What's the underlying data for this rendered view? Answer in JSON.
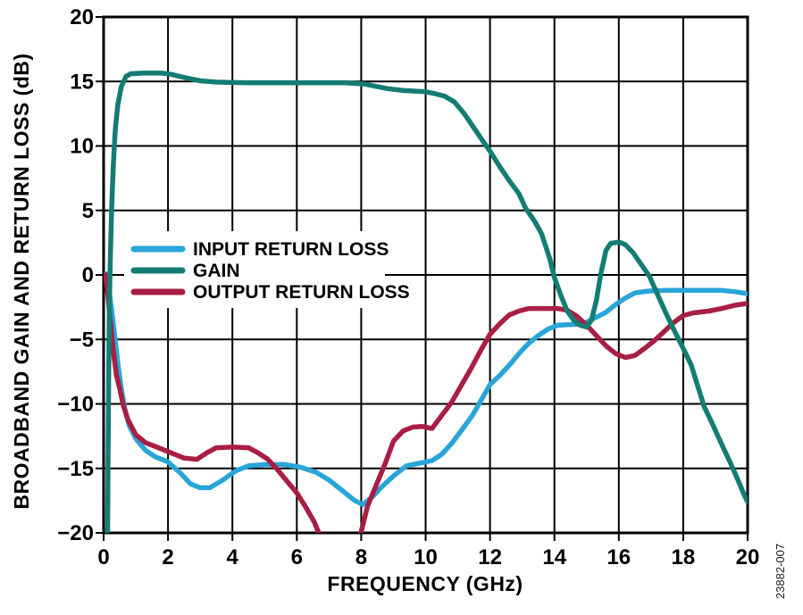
{
  "figure": {
    "background": "#ffffff",
    "axis_color": "#000000",
    "watermark": "23882-007"
  },
  "legend": {
    "items": [
      {
        "label": "INPUT RETURN LOSS",
        "color": "#29A5D8"
      },
      {
        "label": "GAIN",
        "color": "#147C73"
      },
      {
        "label": "OUTPUT RETURN LOSS",
        "color": "#A81E44"
      }
    ]
  },
  "chart_data": {
    "type": "line",
    "title": "",
    "xlabel": "FREQUENCY (GHz)",
    "ylabel": "BROADBAND GAIN AND RETURN LOSS (dB)",
    "xlim": [
      0,
      20
    ],
    "ylim": [
      -20,
      20
    ],
    "grid": true,
    "legend_position": "inside-left-middle",
    "x_tick_values": [
      0,
      2,
      4,
      6,
      8,
      10,
      12,
      14,
      16,
      18,
      20
    ],
    "x_tick_labels": [
      "0",
      "2",
      "4",
      "6",
      "8",
      "10",
      "12",
      "14",
      "16",
      "18",
      "20"
    ],
    "y_tick_values": [
      20,
      15,
      10,
      5,
      0,
      -5,
      -10,
      -15,
      -20
    ],
    "y_tick_labels": [
      "20",
      "15",
      "10",
      "5",
      "0",
      "−5",
      "−10",
      "−15",
      "−20"
    ],
    "series": [
      {
        "name": "INPUT RETURN LOSS",
        "color": "#29A5D8",
        "points": [
          [
            0.07,
            0.1
          ],
          [
            0.15,
            -0.9
          ],
          [
            0.25,
            -2.7
          ],
          [
            0.35,
            -4.8
          ],
          [
            0.45,
            -7.0
          ],
          [
            0.55,
            -8.8
          ],
          [
            0.65,
            -10.3
          ],
          [
            0.8,
            -11.7
          ],
          [
            1.0,
            -12.7
          ],
          [
            1.3,
            -13.6
          ],
          [
            1.6,
            -14.1
          ],
          [
            2.0,
            -14.5
          ],
          [
            2.4,
            -15.4
          ],
          [
            2.7,
            -16.2
          ],
          [
            3.0,
            -16.5
          ],
          [
            3.3,
            -16.5
          ],
          [
            3.7,
            -15.9
          ],
          [
            4.1,
            -15.2
          ],
          [
            4.5,
            -14.8
          ],
          [
            5.0,
            -14.7
          ],
          [
            5.6,
            -14.7
          ],
          [
            6.1,
            -14.9
          ],
          [
            6.6,
            -15.3
          ],
          [
            7.0,
            -15.9
          ],
          [
            7.4,
            -16.7
          ],
          [
            7.8,
            -17.5
          ],
          [
            8.05,
            -17.8
          ],
          [
            8.35,
            -17.2
          ],
          [
            8.65,
            -16.4
          ],
          [
            9.0,
            -15.6
          ],
          [
            9.4,
            -14.8
          ],
          [
            9.8,
            -14.6
          ],
          [
            10.2,
            -14.4
          ],
          [
            10.5,
            -13.9
          ],
          [
            10.8,
            -13.1
          ],
          [
            11.1,
            -12.1
          ],
          [
            11.45,
            -10.9
          ],
          [
            11.75,
            -9.6
          ],
          [
            12.0,
            -8.5
          ],
          [
            12.3,
            -7.8
          ],
          [
            12.6,
            -7.0
          ],
          [
            12.9,
            -6.1
          ],
          [
            13.2,
            -5.3
          ],
          [
            13.5,
            -4.7
          ],
          [
            13.8,
            -4.2
          ],
          [
            14.1,
            -3.9
          ],
          [
            14.5,
            -3.85
          ],
          [
            14.9,
            -3.8
          ],
          [
            15.2,
            -3.4
          ],
          [
            15.6,
            -2.9
          ],
          [
            15.9,
            -2.3
          ],
          [
            16.2,
            -1.8
          ],
          [
            16.5,
            -1.4
          ],
          [
            16.9,
            -1.25
          ],
          [
            17.5,
            -1.2
          ],
          [
            18.5,
            -1.2
          ],
          [
            19.2,
            -1.2
          ],
          [
            19.6,
            -1.3
          ],
          [
            20.0,
            -1.45
          ]
        ]
      },
      {
        "name": "GAIN",
        "color": "#147C73",
        "points": [
          [
            0.12,
            -22
          ],
          [
            0.14,
            -14
          ],
          [
            0.16,
            -7
          ],
          [
            0.18,
            -2
          ],
          [
            0.21,
            1.5
          ],
          [
            0.25,
            5.2
          ],
          [
            0.3,
            8.4
          ],
          [
            0.36,
            11.2
          ],
          [
            0.44,
            13.2
          ],
          [
            0.55,
            14.6
          ],
          [
            0.7,
            15.4
          ],
          [
            0.85,
            15.6
          ],
          [
            1.2,
            15.65
          ],
          [
            1.8,
            15.65
          ],
          [
            2.1,
            15.55
          ],
          [
            2.35,
            15.4
          ],
          [
            2.6,
            15.25
          ],
          [
            3.0,
            15.05
          ],
          [
            3.5,
            14.95
          ],
          [
            4.5,
            14.9
          ],
          [
            6.0,
            14.9
          ],
          [
            7.5,
            14.9
          ],
          [
            8.1,
            14.8
          ],
          [
            8.4,
            14.65
          ],
          [
            8.8,
            14.45
          ],
          [
            9.3,
            14.3
          ],
          [
            10.0,
            14.2
          ],
          [
            10.3,
            14.05
          ],
          [
            10.6,
            13.85
          ],
          [
            10.9,
            13.4
          ],
          [
            11.2,
            12.5
          ],
          [
            11.5,
            11.4
          ],
          [
            11.8,
            10.3
          ],
          [
            12.0,
            9.6
          ],
          [
            12.3,
            8.4
          ],
          [
            12.6,
            7.3
          ],
          [
            12.9,
            6.3
          ],
          [
            13.1,
            5.2
          ],
          [
            13.4,
            4.1
          ],
          [
            13.6,
            3.2
          ],
          [
            13.85,
            1.3
          ],
          [
            14.0,
            -0.2
          ],
          [
            14.2,
            -1.6
          ],
          [
            14.4,
            -2.8
          ],
          [
            14.6,
            -3.5
          ],
          [
            14.8,
            -3.9
          ],
          [
            15.0,
            -4.05
          ],
          [
            15.15,
            -3.5
          ],
          [
            15.3,
            -2.0
          ],
          [
            15.45,
            0.2
          ],
          [
            15.6,
            1.9
          ],
          [
            15.75,
            2.45
          ],
          [
            16.0,
            2.55
          ],
          [
            16.2,
            2.35
          ],
          [
            16.45,
            1.7
          ],
          [
            16.7,
            0.8
          ],
          [
            16.95,
            -0.1
          ],
          [
            17.2,
            -1.5
          ],
          [
            17.45,
            -2.9
          ],
          [
            17.7,
            -4.2
          ],
          [
            18.0,
            -5.7
          ],
          [
            18.25,
            -7.0
          ],
          [
            18.45,
            -8.6
          ],
          [
            18.65,
            -10.2
          ],
          [
            18.9,
            -11.5
          ],
          [
            19.15,
            -12.9
          ],
          [
            19.45,
            -14.5
          ],
          [
            19.7,
            -15.9
          ],
          [
            19.9,
            -17.1
          ],
          [
            20.0,
            -17.6
          ]
        ]
      },
      {
        "name": "OUTPUT RETURN LOSS",
        "color": "#A81E44",
        "points": [
          [
            0.05,
            0.0
          ],
          [
            0.12,
            -1.2
          ],
          [
            0.2,
            -3.4
          ],
          [
            0.3,
            -5.9
          ],
          [
            0.4,
            -7.8
          ],
          [
            0.5,
            -8.8
          ],
          [
            0.6,
            -10.0
          ],
          [
            0.75,
            -11.2
          ],
          [
            1.0,
            -12.4
          ],
          [
            1.3,
            -13.0
          ],
          [
            1.7,
            -13.4
          ],
          [
            2.1,
            -13.8
          ],
          [
            2.5,
            -14.2
          ],
          [
            2.9,
            -14.3
          ],
          [
            3.2,
            -13.8
          ],
          [
            3.5,
            -13.4
          ],
          [
            4.0,
            -13.35
          ],
          [
            4.5,
            -13.4
          ],
          [
            4.8,
            -13.8
          ],
          [
            5.1,
            -14.3
          ],
          [
            5.4,
            -15.1
          ],
          [
            5.7,
            -16.0
          ],
          [
            6.0,
            -16.9
          ],
          [
            6.3,
            -18.1
          ],
          [
            6.55,
            -19.2
          ],
          [
            6.7,
            -20.1
          ],
          [
            7.0,
            -21.3
          ],
          [
            7.5,
            -21.8
          ],
          [
            7.85,
            -20.6
          ],
          [
            8.0,
            -19.9
          ],
          [
            8.2,
            -17.9
          ],
          [
            8.5,
            -16.1
          ],
          [
            8.75,
            -14.6
          ],
          [
            9.0,
            -12.9
          ],
          [
            9.3,
            -12.1
          ],
          [
            9.6,
            -11.8
          ],
          [
            9.9,
            -11.75
          ],
          [
            10.2,
            -11.9
          ],
          [
            10.5,
            -10.9
          ],
          [
            10.8,
            -9.9
          ],
          [
            11.1,
            -8.6
          ],
          [
            11.4,
            -7.3
          ],
          [
            11.7,
            -5.9
          ],
          [
            12.0,
            -4.6
          ],
          [
            12.3,
            -3.8
          ],
          [
            12.6,
            -3.1
          ],
          [
            12.9,
            -2.8
          ],
          [
            13.2,
            -2.6
          ],
          [
            13.7,
            -2.6
          ],
          [
            14.1,
            -2.6
          ],
          [
            14.4,
            -2.75
          ],
          [
            14.7,
            -3.2
          ],
          [
            15.0,
            -3.9
          ],
          [
            15.3,
            -4.7
          ],
          [
            15.6,
            -5.5
          ],
          [
            15.9,
            -6.1
          ],
          [
            16.2,
            -6.4
          ],
          [
            16.5,
            -6.25
          ],
          [
            16.8,
            -5.7
          ],
          [
            17.1,
            -5.1
          ],
          [
            17.4,
            -4.4
          ],
          [
            17.7,
            -3.7
          ],
          [
            18.0,
            -3.15
          ],
          [
            18.3,
            -2.95
          ],
          [
            18.8,
            -2.8
          ],
          [
            19.2,
            -2.6
          ],
          [
            19.6,
            -2.35
          ],
          [
            20.0,
            -2.2
          ]
        ]
      }
    ]
  }
}
